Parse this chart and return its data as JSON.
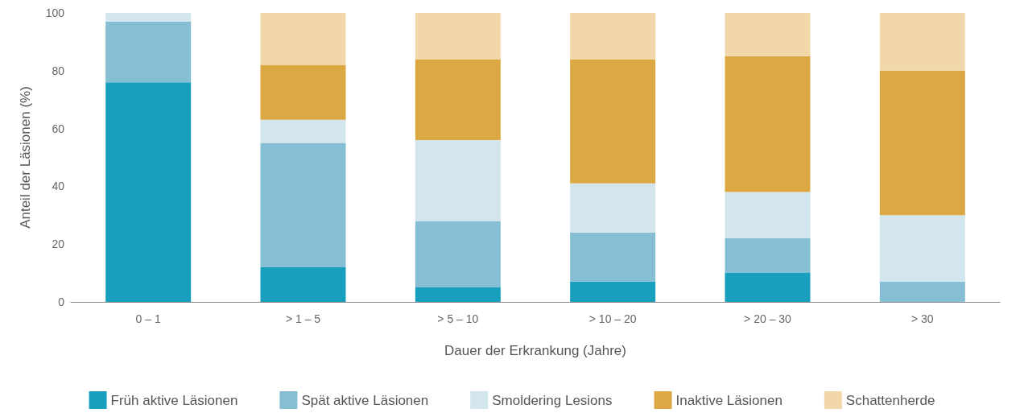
{
  "chart_data": {
    "type": "bar",
    "stacked": true,
    "xlabel": "Dauer der Erkrankung (Jahre)",
    "ylabel": "Anteil der Läsionen (%)",
    "categories": [
      "0 – 1",
      "> 1 – 5",
      "> 5 – 10",
      "> 10 – 20",
      "> 20 – 30",
      "> 30"
    ],
    "ylim": [
      0,
      100
    ],
    "yticks": [
      0,
      20,
      40,
      60,
      80,
      100
    ],
    "grid": false,
    "legend": "bottom",
    "series": [
      {
        "name": "Früh aktive Läsionen",
        "color": "#179fbd",
        "values": [
          76,
          12,
          5,
          7,
          10,
          0
        ]
      },
      {
        "name": "Spät aktive Läsionen",
        "color": "#86bfd4",
        "values": [
          21,
          43,
          23,
          17,
          12,
          7
        ]
      },
      {
        "name": "Smoldering Lesions",
        "color": "#d3e6ed",
        "values": [
          3,
          8,
          28,
          17,
          16,
          23
        ]
      },
      {
        "name": "Inaktive Läsionen",
        "color": "#dca843",
        "values": [
          0,
          19,
          28,
          43,
          47,
          50
        ]
      },
      {
        "name": "Schattenherde",
        "color": "#f2d7ab",
        "values": [
          0,
          18,
          16,
          16,
          15,
          20
        ]
      }
    ]
  }
}
